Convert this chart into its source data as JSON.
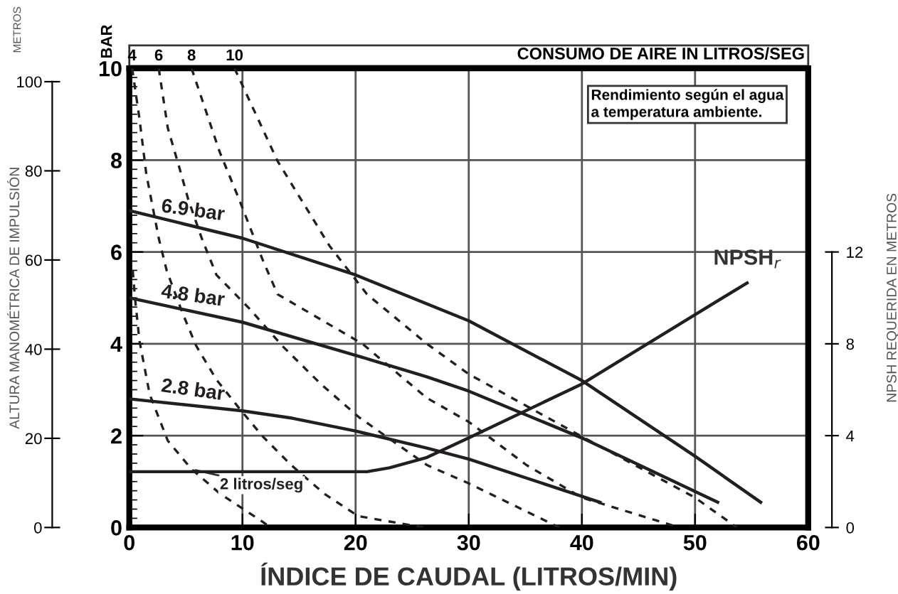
{
  "chart_data": {
    "type": "line",
    "xlabel": "ÍNDICE DE CAUDAL (LITROS/MIN)",
    "ylabel": "BAR",
    "y2label": "NPSH REQUERIDA EN METROS",
    "y3label": "ALTURA MANOMÉTRICA DE IMPULSIÓN",
    "xlim": [
      0,
      60
    ],
    "xticks": [
      0,
      10,
      20,
      30,
      40,
      50,
      60
    ],
    "ylim": [
      0,
      10
    ],
    "yticks": [
      0,
      2,
      4,
      6,
      8,
      10
    ],
    "y2lim": [
      0,
      20
    ],
    "y2ticks": [
      0,
      4,
      8,
      12
    ],
    "y3lim": [
      0,
      103
    ],
    "y3ticks": [
      0,
      20,
      40,
      60,
      80,
      100
    ],
    "grid": true,
    "marker": "none",
    "legend": false,
    "annotations": [
      "METROS",
      "CONSUMO DE AIRE IN LITROS/SEG",
      "Rendimiento según el agua\na temperatura ambiente."
    ],
    "series": [
      {
        "name": "6.9 bar",
        "color": "#231f20",
        "line_style": "solid",
        "x": [
          0,
          10,
          20,
          30,
          40,
          50,
          55.8
        ],
        "values": [
          6.9,
          6.3,
          5.5,
          4.5,
          3.2,
          1.55,
          0.55
        ]
      },
      {
        "name": "4.8 bar",
        "color": "#231f20",
        "line_style": "solid",
        "x": [
          0,
          10,
          20,
          26.3,
          30,
          40,
          52
        ],
        "values": [
          5.0,
          4.47,
          3.75,
          3.28,
          2.97,
          1.95,
          0.55
        ]
      },
      {
        "name": "2.8 bar",
        "color": "#231f20",
        "line_style": "solid",
        "x": [
          0,
          10,
          14.4,
          20,
          26.3,
          30,
          41.6
        ],
        "values": [
          2.8,
          2.54,
          2.38,
          2.1,
          1.73,
          1.49,
          0.55
        ]
      },
      {
        "name": "NPSH$_{r}$",
        "color": "#231f20",
        "line_style": "solid",
        "axis": "y2",
        "x": [
          0,
          21,
          23,
          26.3,
          30,
          40,
          50,
          54.6
        ],
        "values": [
          2.43,
          2.43,
          2.6,
          3.05,
          3.9,
          6.25,
          9.27,
          10.65
        ]
      },
      {
        "name": "2 litros/seg",
        "color": "#231f20",
        "line_style": "dashed",
        "x": [
          0.3,
          0.5,
          0.9,
          1.8,
          3.4,
          5.5,
          8.0,
          11.8,
          12.5
        ],
        "values": [
          5.6,
          5.0,
          4.06,
          2.9,
          1.89,
          1.27,
          0.74,
          0.12,
          0
        ]
      },
      {
        "name": "4",
        "color": "#231f20",
        "line_style": "dashed",
        "x": [
          0.25,
          0.9,
          1.5,
          2.6,
          3.3,
          4.7,
          5.9,
          7.7,
          9.7,
          11.8,
          14.3,
          17.2,
          20.2,
          26
        ],
        "values": [
          10,
          8.9,
          7.7,
          6.3,
          5.6,
          4.67,
          3.96,
          3.22,
          2.6,
          1.98,
          1.36,
          0.74,
          0.25,
          0
        ]
      },
      {
        "name": "6",
        "color": "#231f20",
        "line_style": "dashed",
        "x": [
          2.6,
          3.4,
          4.5,
          5.2,
          6.4,
          7.7,
          10.6,
          13.5,
          16.9,
          20.3,
          26.3,
          30,
          38
        ],
        "values": [
          10,
          8.7,
          7.77,
          7.15,
          6.3,
          5.5,
          4.77,
          3.96,
          3.13,
          2.4,
          1.36,
          0.96,
          0
        ]
      },
      {
        "name": "8",
        "color": "#231f20",
        "line_style": "dashed",
        "x": [
          5.5,
          8.0,
          9.7,
          11.8,
          13.1,
          20.6,
          26.3,
          30,
          35.1,
          40,
          48.6
        ],
        "values": [
          10,
          8.17,
          7.15,
          5.82,
          5.08,
          4.0,
          2.82,
          2.3,
          1.36,
          0.65,
          0
        ]
      },
      {
        "name": "10",
        "color": "#231f20",
        "line_style": "dashed",
        "x": [
          9.3,
          13.1,
          17.7,
          21,
          26.3,
          30,
          40,
          50,
          53.7
        ],
        "values": [
          10,
          7.98,
          6.13,
          5.08,
          4.0,
          3.34,
          1.98,
          0.65,
          0
        ]
      }
    ]
  }
}
